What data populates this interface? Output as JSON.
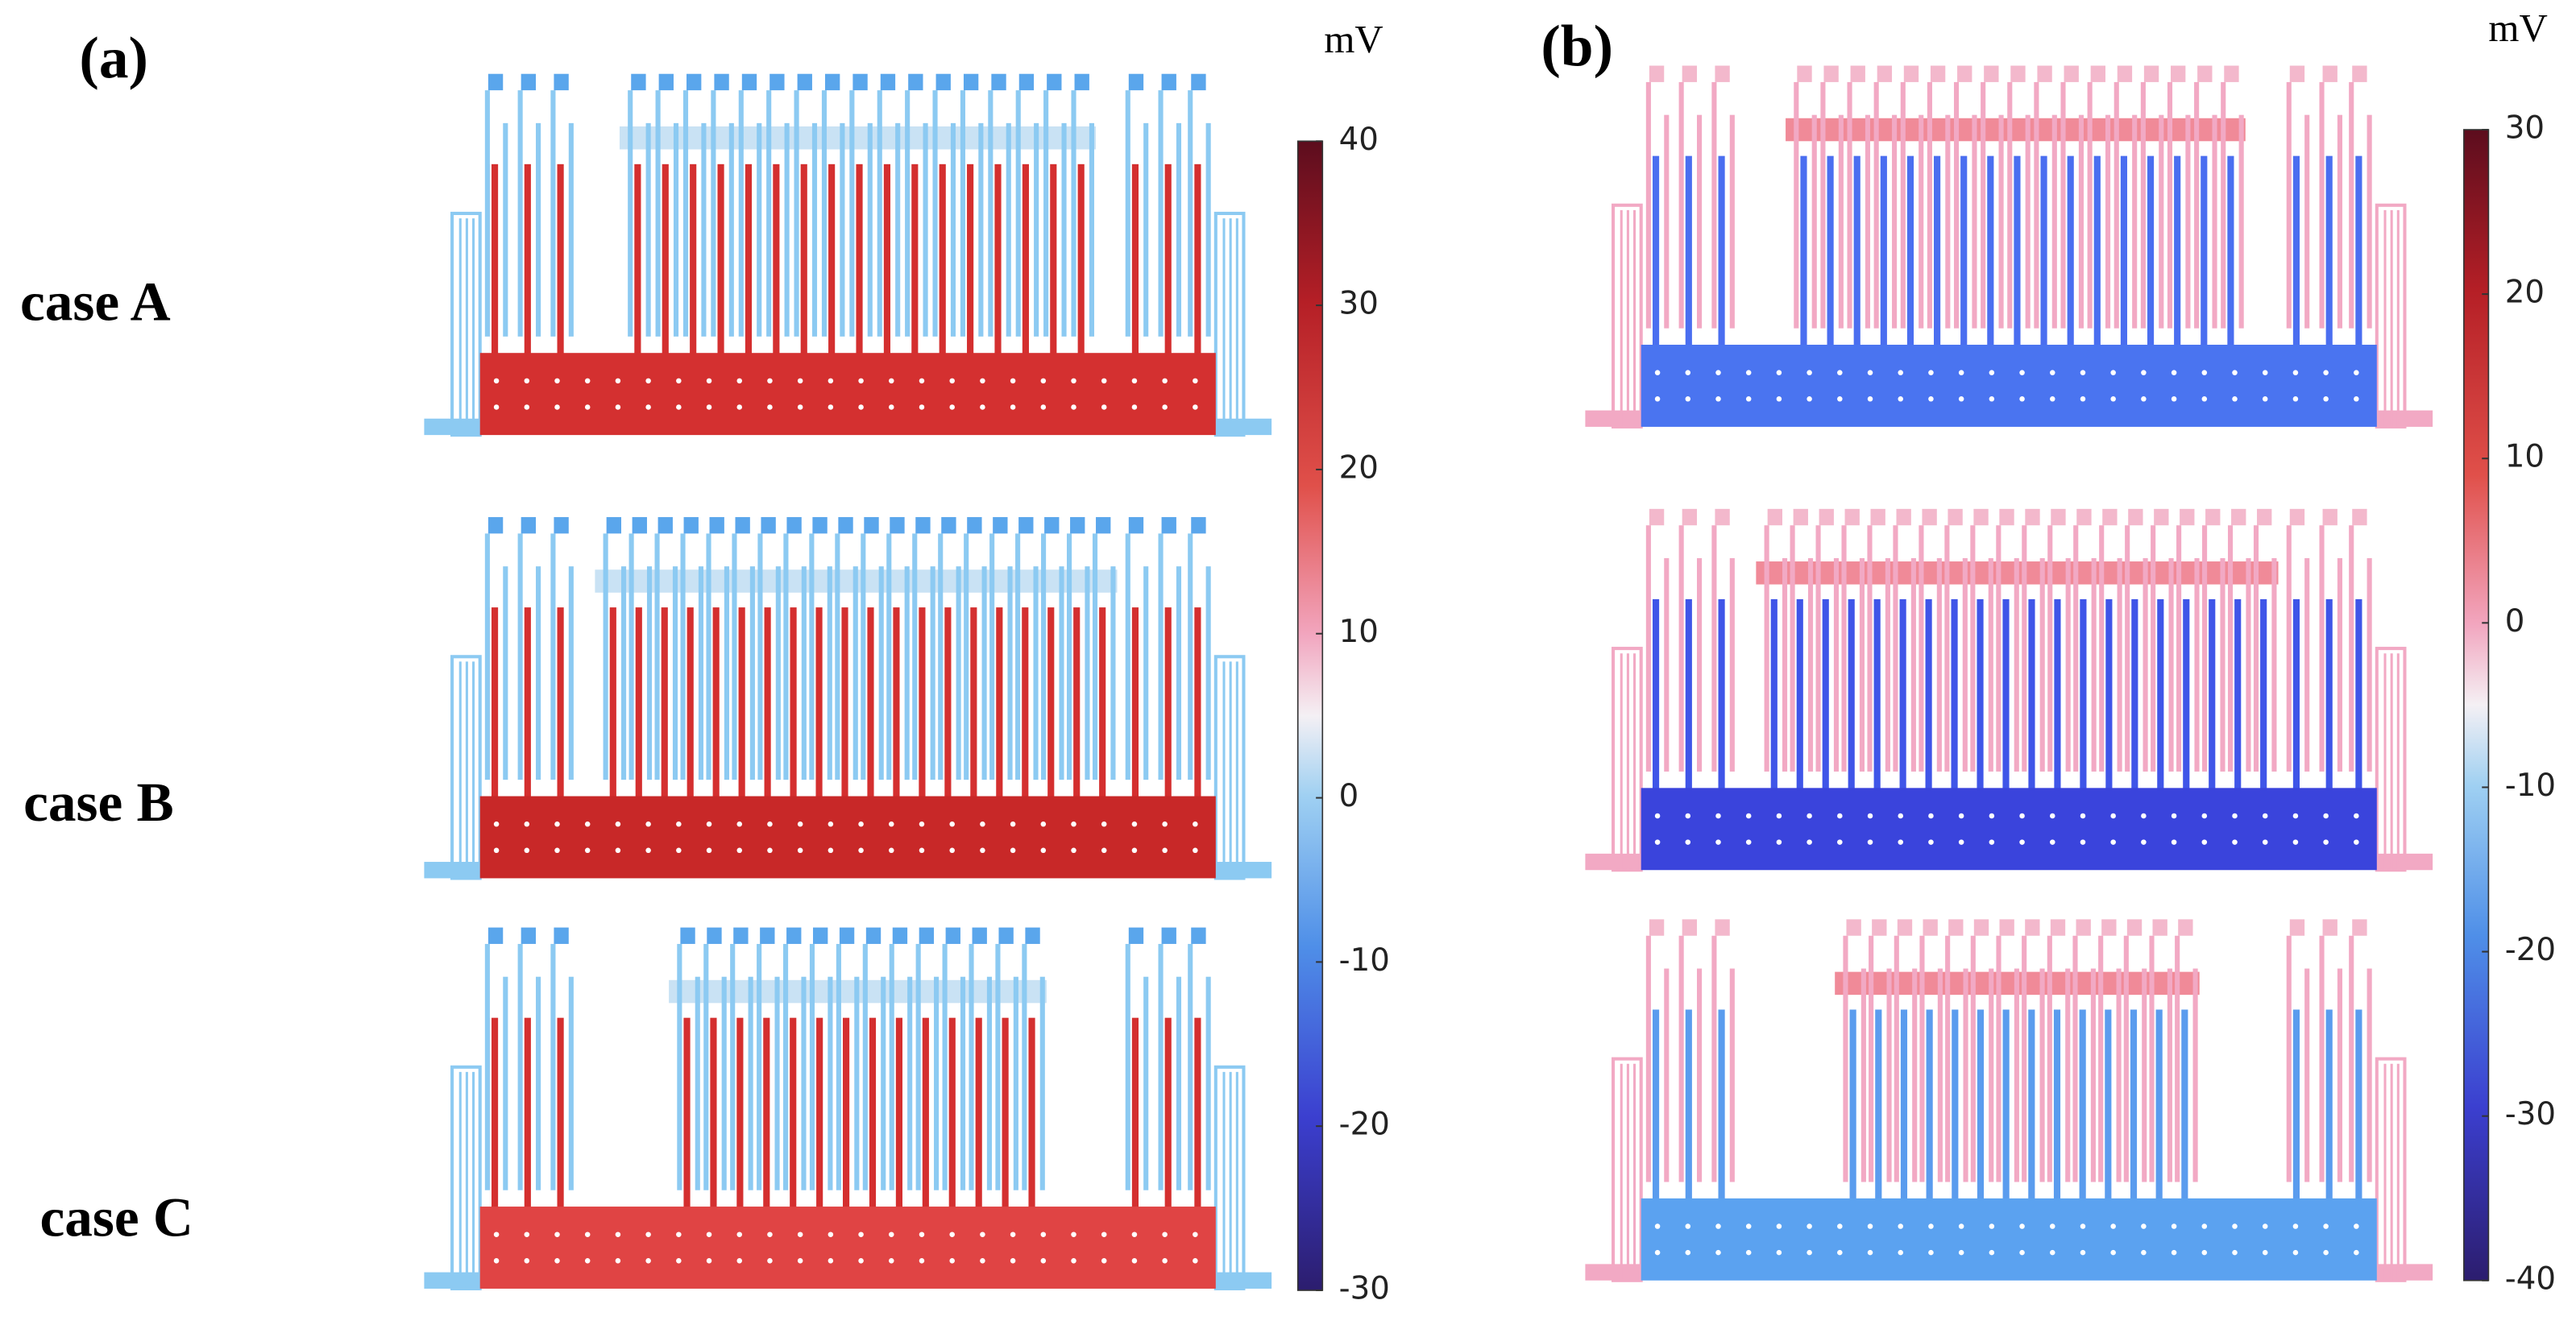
{
  "panels": [
    {
      "label": "(a)",
      "unit": "mV",
      "colorbar_ticks": [
        40,
        30,
        20,
        10,
        0,
        -10,
        -20,
        -30
      ]
    },
    {
      "label": "(b)",
      "unit": "mV",
      "colorbar_ticks": [
        30,
        20,
        10,
        0,
        -10,
        -20,
        -30,
        -40
      ]
    }
  ],
  "cases": [
    "case A",
    "case B",
    "case C"
  ]
}
